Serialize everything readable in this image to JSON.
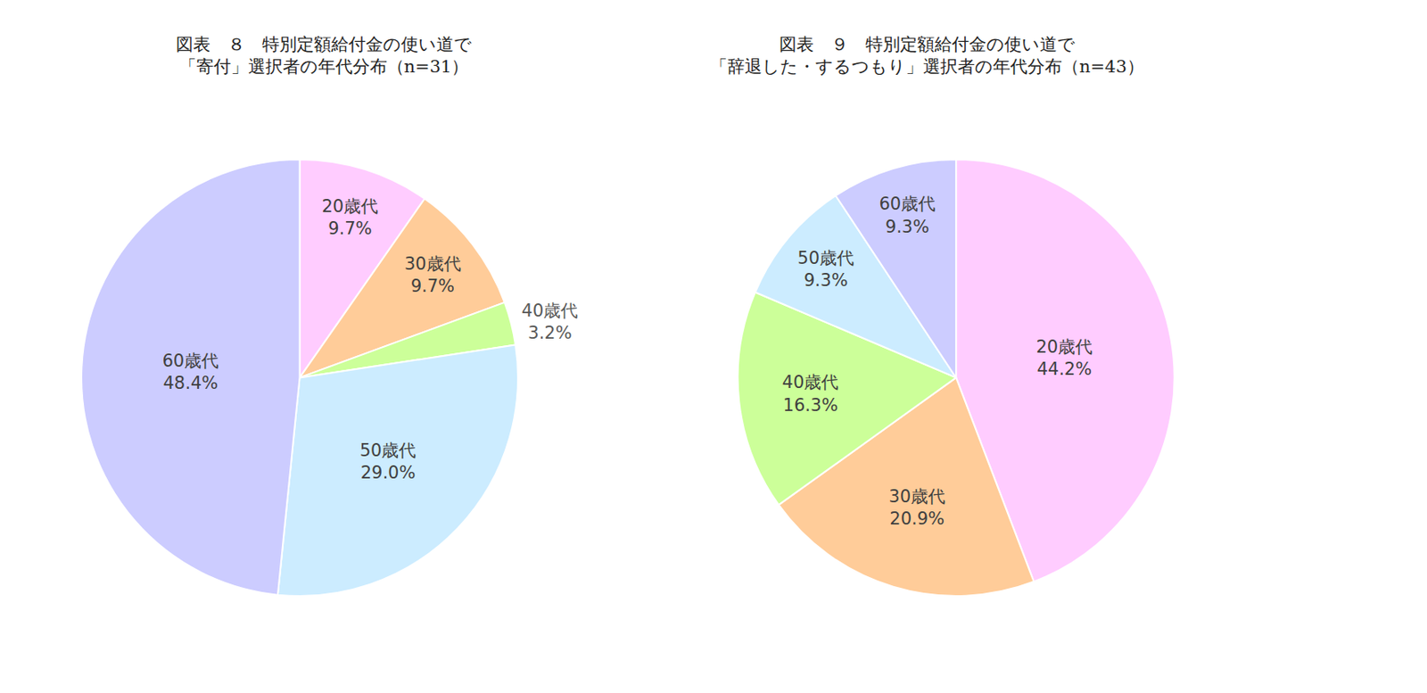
{
  "chart_data": [
    {
      "type": "pie",
      "title": "図表　８　特別定額給付金の使い道で\n「寄付」選択者の年代分布（n=31）",
      "categories": [
        "20歳代",
        "30歳代",
        "40歳代",
        "50歳代",
        "60歳代"
      ],
      "values": [
        9.7,
        9.7,
        3.2,
        29.0,
        48.4
      ],
      "value_labels": [
        "9.7%",
        "9.7%",
        "3.2%",
        "29.0%",
        "48.4%"
      ],
      "colors": [
        "#FFCCFF",
        "#FFCC99",
        "#CCFF99",
        "#CCECFF",
        "#CCCCFF"
      ],
      "data_labels": true
    },
    {
      "type": "pie",
      "title": "図表　９　特別定額給付金の使い道で\n「辞退した・するつもり」選択者の年代分布（n=43）",
      "categories": [
        "20歳代",
        "30歳代",
        "40歳代",
        "50歳代",
        "60歳代"
      ],
      "values": [
        44.2,
        20.9,
        16.3,
        9.3,
        9.3
      ],
      "value_labels": [
        "44.2%",
        "20.9%",
        "16.3%",
        "9.3%",
        "9.3%"
      ],
      "colors": [
        "#FFCCFF",
        "#FFCC99",
        "#CCFF99",
        "#CCECFF",
        "#CCCCFF"
      ],
      "data_labels": true
    }
  ]
}
